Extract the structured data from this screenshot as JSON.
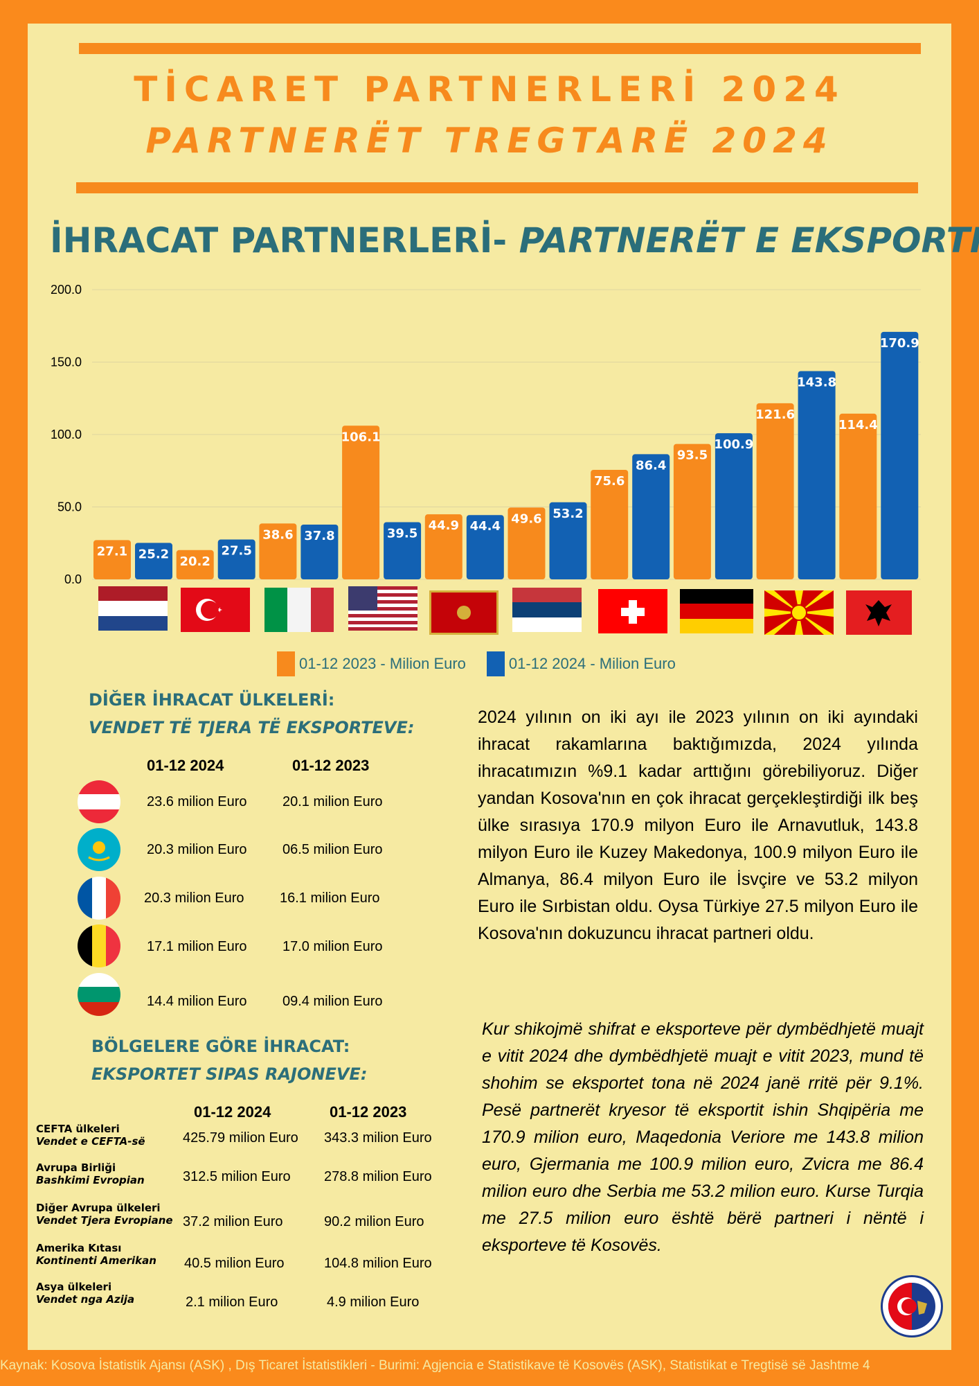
{
  "header": {
    "title_tr": "TİCARET PARTNERLERİ 2024",
    "title_sq": "PARTNERËT TREGTARË  2024"
  },
  "section_title": {
    "tr": "İHRACAT PARTNERLERİ-",
    "sq": " PARTNERËT E EKSPORTIT"
  },
  "chart_data": {
    "type": "bar",
    "categories": [
      "Netherlands",
      "Türkiye",
      "Italy",
      "USA",
      "Montenegro",
      "Serbia",
      "Switzerland",
      "Germany",
      "North Macedonia",
      "Albania"
    ],
    "series": [
      {
        "name": "01-12 2023 - Milion Euro",
        "color": "#f78a1d",
        "values": [
          27.1,
          20.2,
          38.6,
          106.1,
          44.9,
          49.6,
          75.6,
          93.5,
          121.6,
          114.4
        ]
      },
      {
        "name": "01-12 2024 - Milion Euro",
        "color": "#1261b3",
        "values": [
          25.2,
          27.5,
          37.8,
          39.5,
          44.4,
          53.2,
          86.4,
          100.9,
          143.8,
          170.9
        ]
      }
    ],
    "ylim": [
      0,
      200
    ],
    "yticks": [
      "0.0",
      "50.0",
      "100.0",
      "150.0",
      "200.0"
    ],
    "grid": true,
    "legend_position": "bottom"
  },
  "other_countries": {
    "title_tr": "DİĞER İHRACAT ÜLKELERİ:",
    "title_sq": "VENDET TË TJERA TË EKSPORTEVE:",
    "col_2024": "01-12 2024",
    "col_2023": "01-12 2023",
    "rows": [
      {
        "flag": "austria-flag-icon",
        "v2024": "23.6 milion Euro",
        "v2023": "20.1 milion Euro"
      },
      {
        "flag": "kazakhstan-flag-icon",
        "v2024": "20.3 milion Euro",
        "v2023": "06.5 milion Euro"
      },
      {
        "flag": "france-flag-icon",
        "v2024": "20.3 milion Euro",
        "v2023": "16.1 milion Euro"
      },
      {
        "flag": "belgium-flag-icon",
        "v2024": "17.1 milion Euro",
        "v2023": "17.0 milion Euro"
      },
      {
        "flag": "bulgaria-flag-icon",
        "v2024": "14.4 milion Euro",
        "v2023": "09.4 milion Euro"
      }
    ]
  },
  "regions": {
    "title_tr": "BÖLGELERE GÖRE İHRACAT:",
    "title_sq": "EKSPORTET SIPAS RAJONEVE:",
    "col_2024": "01-12 2024",
    "col_2023": "01-12 2023",
    "rows": [
      {
        "name_tr": "CEFTA ülkeleri",
        "name_sq": "Vendet e CEFTA-së",
        "v2024": "425.79 milion Euro",
        "v2023": "343.3 milion Euro"
      },
      {
        "name_tr": "Avrupa Birliği",
        "name_sq": "Bashkimi Evropian",
        "v2024": "312.5 milion Euro",
        "v2023": "278.8 milion Euro"
      },
      {
        "name_tr": "Diğer Avrupa ülkeleri",
        "name_sq": "Vendet Tjera Evropiane",
        "v2024": "37.2 milion Euro",
        "v2023": "90.2 milion Euro"
      },
      {
        "name_tr": "Amerika Kıtası",
        "name_sq": "Kontinenti Amerikan",
        "v2024": "40.5 milion Euro",
        "v2023": "104.8 milion Euro"
      },
      {
        "name_tr": "Asya ülkeleri",
        "name_sq": "Vendet nga Azija",
        "v2024": "2.1 milion Euro",
        "v2023": "4.9 milion Euro"
      }
    ]
  },
  "paragraph_tr": "2024 yılının on iki ayı ile 2023 yılının on iki ayındaki ihracat rakamlarına baktığımızda, 2024 yılında ihracatımızın %9.1 kadar arttığını görebiliyoruz. Diğer yandan Kosova'nın en çok ihracat gerçekleştirdiği ilk beş ülke sırasıya 170.9 milyon Euro ile Arnavutluk,  143.8 milyon Euro ile Kuzey Makedonya, 100.9 milyon Euro ile Almanya, 86.4 milyon Euro ile İsvçire ve 53.2 milyon Euro ile Sırbistan oldu.  Oysa Türkiye 27.5 milyon Euro ile Kosova'nın dokuzuncu ihracat partneri oldu.",
  "paragraph_sq": "Kur shikojmë shifrat e eksporteve për dymbëdhjetë muajt e vitit 2024 dhe dymbëdhjetë muajt e vitit 2023, mund të shohim se eksportet tona në 2024 janë rritë për 9.1%. Pesë partnerët kryesor të eksportit ishin Shqipëria  me 170.9 milion euro, Maqedonia Veriore  me 143.8 milion euro, Gjermania me 100.9 milion euro, Zvicra me 86.4 milion euro dhe Serbia me 53.2 milion euro. Kurse Turqia me 27.5 milion euro është bërë partneri i nëntë i eksporteve të Kosovës.",
  "footer": "Kaynak: Kosova İstatistik Ajansı (ASK) ,  Dış Ticaret İstatistikleri -   Burimi: Agjencia e Statistikave të Kosovës (ASK), Statistikat e Tregtisë së Jashtme   4",
  "logo": "chamber-of-commerce-logo-icon"
}
